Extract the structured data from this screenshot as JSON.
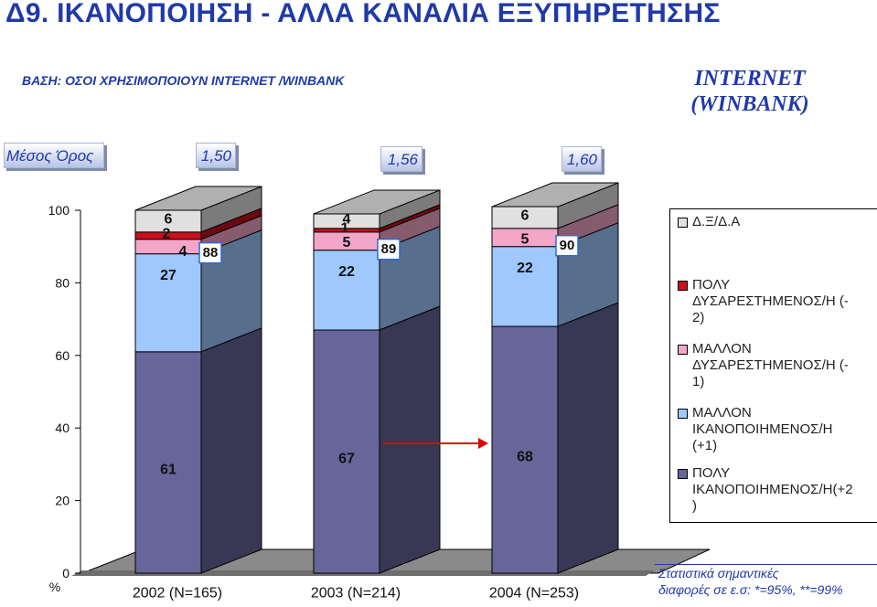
{
  "title": "Δ9.   ΙΚΑΝΟΠΟΙΗΣΗ - ΑΛΛΑ ΚΑΝΑΛΙΑ ΕΞΥΠΗΡΕΤΗΣΗΣ",
  "base_text": "ΒΑΣΗ: ΟΣΟΙ ΧΡΗΣΙΜΟΠΟΙΟΥΝ INTERNET /WINBANK",
  "channel_label": [
    "INTERNET",
    "(WINBANK)"
  ],
  "mean": {
    "label": "Μέσος Όρος",
    "values": [
      "1,50",
      "1,56",
      "1,60"
    ]
  },
  "footnote": [
    "Στατιστικά σημαντικές",
    "διαφορές σε ε.σ: *=95%, **=99%"
  ],
  "colors": {
    "dont_know": "#e0e0e0",
    "very_dissatisfied": "#c8101e",
    "somewhat_dissatisfied": "#f4a6c8",
    "somewhat_satisfied": "#9fc8ff",
    "very_satisfied": "#66669a",
    "total_badge_border": "#2b6cd6",
    "arrow": "#e00000"
  },
  "chart_data": {
    "type": "bar",
    "stacked": true,
    "percent_axis_symbol": "%",
    "categories": [
      "2002 (N=165)",
      "2003 (N=214)",
      "2004 (N=253)"
    ],
    "ylim": [
      0,
      100
    ],
    "yticks": [
      0,
      20,
      40,
      60,
      80,
      100
    ],
    "legend_position": "right",
    "series": [
      {
        "key": "very_satisfied",
        "name": "ΠΟΛΥ ΙΚΑΝΟΠΟΙΗΜΕΝΟΣ/Η(+2 )",
        "legend_lines": [
          "ΠΟΛΥ",
          "ΙΚΑΝΟΠΟΙΗΜΕΝΟΣ/Η(+2",
          ")"
        ],
        "values": [
          61,
          67,
          68
        ]
      },
      {
        "key": "somewhat_satisfied",
        "name": "ΜΑΛΛΟΝ ΙΚΑΝΟΠΟΙΗΜΕΝΟΣ/Η (+1)",
        "legend_lines": [
          "ΜΑΛΛΟΝ",
          "ΙΚΑΝΟΠΟΙΗΜΕΝΟΣ/Η",
          "(+1)"
        ],
        "values": [
          27,
          22,
          22
        ]
      },
      {
        "key": "somewhat_dissatisfied",
        "name": "ΜΑΛΛΟΝ ΔΥΣΑΡΕΣΤΗΜΕΝΟΣ/Η (-1)",
        "legend_lines": [
          "ΜΑΛΛΟΝ",
          "ΔΥΣΑΡΕΣΤΗΜΕΝΟΣ/Η (-",
          "1)"
        ],
        "values": [
          4,
          5,
          5
        ]
      },
      {
        "key": "very_dissatisfied",
        "name": "ΠΟΛΥ ΔΥΣΑΡΕΣΤΗΜΕΝΟΣ/Η (-2)",
        "legend_lines": [
          "ΠΟΛΥ",
          "ΔΥΣΑΡΕΣΤΗΜΕΝΟΣ/Η (-",
          "2)"
        ],
        "values": [
          2,
          1,
          0
        ]
      },
      {
        "key": "dont_know",
        "name": "Δ.Ξ/Δ.Α",
        "legend_lines": [
          "Δ.Ξ/Δ.Α"
        ],
        "values": [
          6,
          4,
          6
        ]
      }
    ],
    "segment_labels": [
      [
        "61",
        "27",
        "4",
        "2",
        "6"
      ],
      [
        "67",
        "22",
        "5",
        "1",
        "4"
      ],
      [
        "68",
        "22",
        "5",
        "",
        "6"
      ]
    ],
    "totals_satisfied": [
      "88",
      "89",
      "90"
    ],
    "annotation": "arrow from 2003 to 2004 very satisfied"
  }
}
